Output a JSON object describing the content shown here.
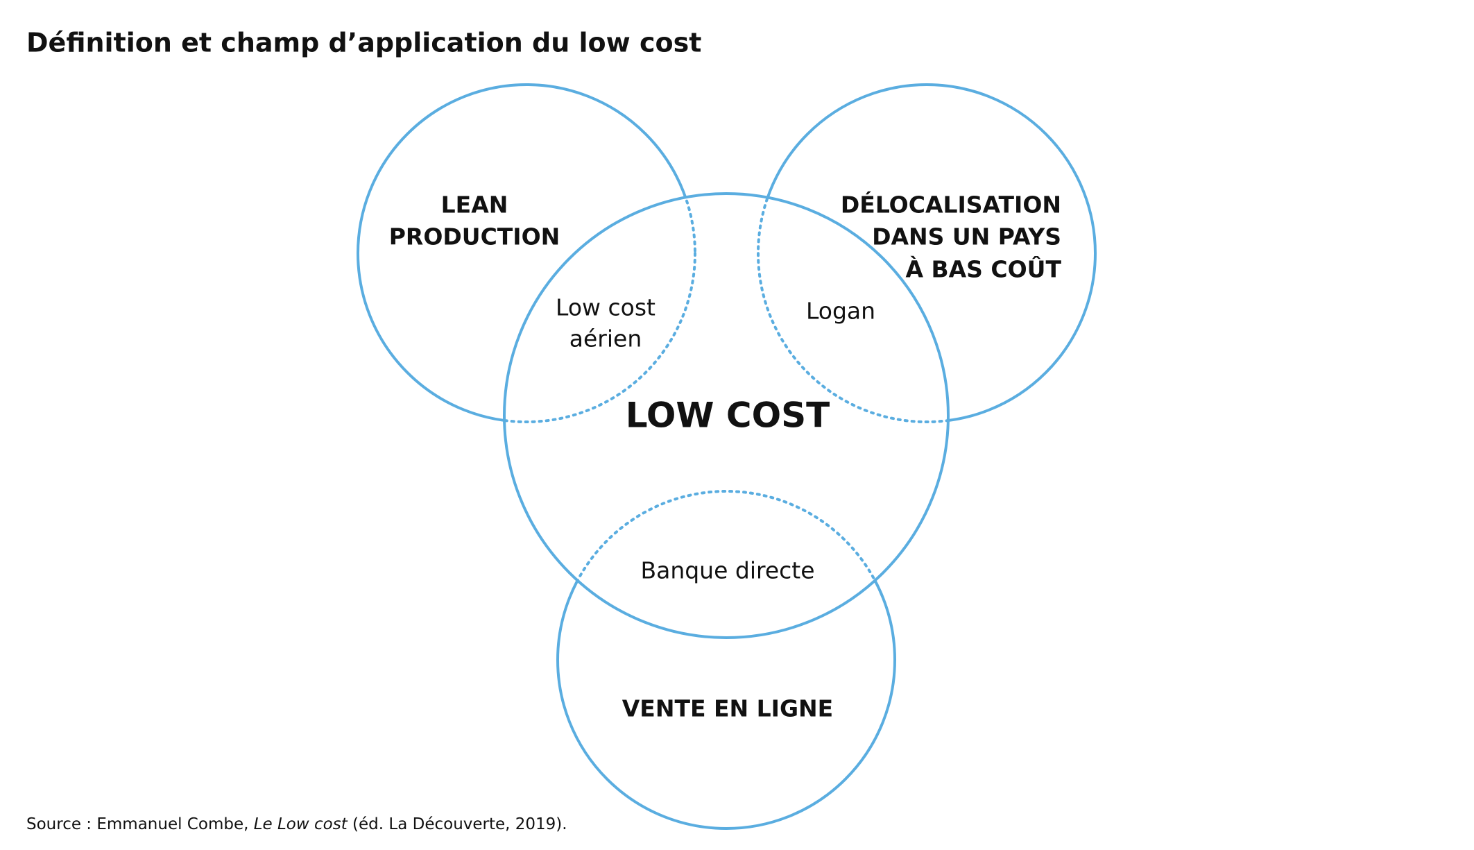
{
  "title": "Définition et champ d’application du low cost",
  "center": {
    "label": "LOW COST"
  },
  "circles": [
    {
      "lines": [
        "LEAN",
        "PRODUCTION"
      ]
    },
    {
      "lines": [
        "DÉLOCALISATION",
        "DANS UN PAYS",
        "À BAS COÛT"
      ]
    },
    {
      "lines": [
        "VENTE EN LIGNE"
      ]
    }
  ],
  "intersections": [
    {
      "lines": [
        "Low cost",
        "aérien"
      ]
    },
    {
      "lines": [
        "Logan"
      ]
    },
    {
      "lines": [
        "Banque directe"
      ]
    }
  ],
  "source": {
    "prefix": "Source : Emmanuel Combe, ",
    "book": "Le Low cost",
    "suffix": " (éd. La Découverte, 2019)."
  }
}
